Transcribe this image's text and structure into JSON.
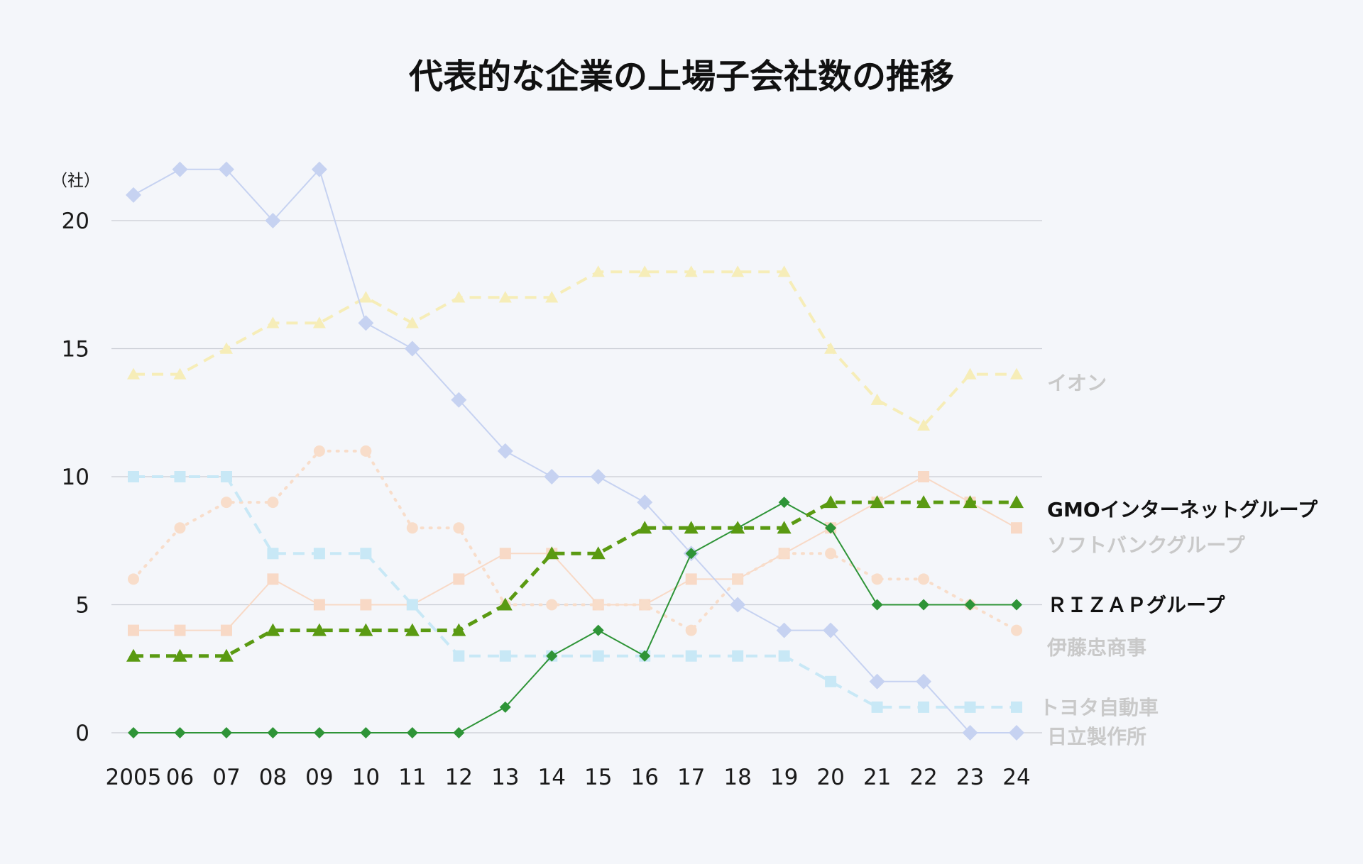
{
  "chart_data": {
    "type": "line",
    "title": "代表的な企業の上場子会社数の推移",
    "y_unit_label": "（社）",
    "ylim": [
      0,
      20
    ],
    "yticks": [
      0,
      5,
      10,
      15,
      20
    ],
    "grid": true,
    "categories": [
      "2005",
      "06",
      "07",
      "08",
      "09",
      "10",
      "11",
      "12",
      "13",
      "14",
      "15",
      "16",
      "17",
      "18",
      "19",
      "20",
      "21",
      "22",
      "23",
      "24"
    ],
    "series": [
      {
        "name": "イオン",
        "values": [
          14,
          14,
          15,
          16,
          16,
          17,
          16,
          17,
          17,
          17,
          18,
          18,
          18,
          18,
          18,
          15,
          13,
          12,
          14,
          14
        ],
        "color": "#f6edb8",
        "label_color": "#c9c9c9",
        "marker": "triangle",
        "line": "dashed",
        "highlight": false
      },
      {
        "name": "ソフトバンクグループ",
        "values": [
          4,
          4,
          4,
          6,
          5,
          5,
          5,
          6,
          7,
          7,
          5,
          5,
          6,
          6,
          7,
          8,
          9,
          10,
          9,
          8
        ],
        "color": "#f8d9c6",
        "label_color": "#c9c9c9",
        "marker": "square",
        "line": "solid",
        "highlight": false
      },
      {
        "name": "伊藤忠商事",
        "values": [
          6,
          8,
          9,
          9,
          11,
          11,
          8,
          8,
          5,
          5,
          5,
          5,
          4,
          6,
          7,
          7,
          6,
          6,
          5,
          4
        ],
        "color": "#f8ddca",
        "label_color": "#c9c9c9",
        "marker": "circle",
        "line": "dotted",
        "highlight": false
      },
      {
        "name": "トヨタ自動車",
        "values": [
          10,
          10,
          10,
          7,
          7,
          7,
          5,
          3,
          3,
          3,
          3,
          3,
          3,
          3,
          3,
          2,
          1,
          1,
          1,
          1
        ],
        "color": "#c8e8f6",
        "label_color": "#c9c9c9",
        "marker": "square",
        "line": "dashed",
        "highlight": false
      },
      {
        "name": "日立製作所",
        "values": [
          21,
          22,
          22,
          20,
          22,
          16,
          15,
          13,
          11,
          10,
          10,
          9,
          7,
          5,
          4,
          4,
          2,
          2,
          0,
          0
        ],
        "color": "#c6d2f1",
        "label_color": "#c9c9c9",
        "marker": "diamond",
        "line": "solid",
        "highlight": false
      },
      {
        "name": "ＲＩＺＡＰグループ",
        "values": [
          0,
          0,
          0,
          0,
          0,
          0,
          0,
          0,
          1,
          3,
          4,
          3,
          7,
          8,
          9,
          8,
          5,
          5,
          5,
          5
        ],
        "color": "#2e9437",
        "label_color": "#111111",
        "marker": "diamond",
        "line": "solid",
        "highlight": true
      },
      {
        "name": "GMOインターネットグループ",
        "values": [
          3,
          3,
          3,
          4,
          4,
          4,
          4,
          4,
          5,
          7,
          7,
          8,
          8,
          8,
          8,
          9,
          9,
          9,
          9,
          9
        ],
        "color": "#5a9a12",
        "label_color": "#111111",
        "marker": "triangle",
        "line": "dashed",
        "highlight": true
      }
    ]
  }
}
